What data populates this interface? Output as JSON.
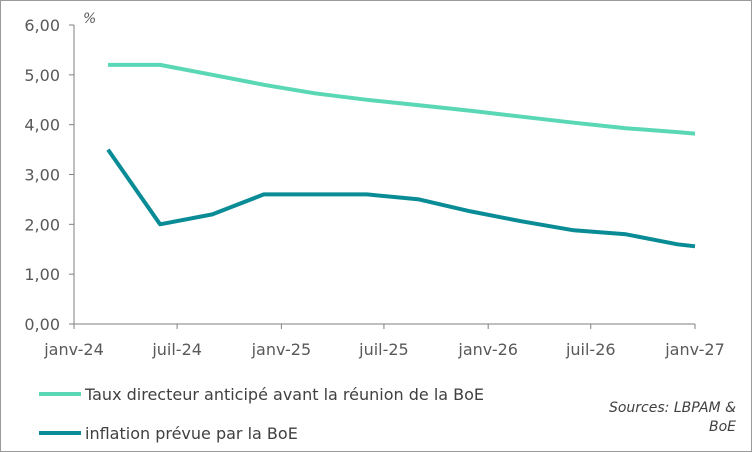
{
  "chart_data": {
    "type": "line",
    "unit_label": "%",
    "ylim": [
      0,
      6
    ],
    "y_ticks": [
      "0,00",
      "1,00",
      "2,00",
      "3,00",
      "4,00",
      "5,00",
      "6,00"
    ],
    "x_range": [
      "2024-01-01",
      "2027-01-01"
    ],
    "x_ticks": [
      {
        "label": "janv-24",
        "date": "2024-01-01"
      },
      {
        "label": "juil-24",
        "date": "2024-07-01"
      },
      {
        "label": "janv-25",
        "date": "2025-01-01"
      },
      {
        "label": "juil-25",
        "date": "2025-07-01"
      },
      {
        "label": "janv-26",
        "date": "2026-01-01"
      },
      {
        "label": "juil-26",
        "date": "2026-07-01"
      },
      {
        "label": "janv-27",
        "date": "2027-01-01"
      }
    ],
    "grid": false,
    "legend_position": "bottom-left",
    "series": [
      {
        "name": "Taux directeur anticipé avant la réunion de la BoE",
        "color": "#5ad7b4",
        "points": [
          {
            "x": "2024-03-01",
            "y": 5.2
          },
          {
            "x": "2024-06-01",
            "y": 5.2
          },
          {
            "x": "2024-09-01",
            "y": 5.0
          },
          {
            "x": "2024-12-01",
            "y": 4.8
          },
          {
            "x": "2025-03-01",
            "y": 4.63
          },
          {
            "x": "2025-06-01",
            "y": 4.5
          },
          {
            "x": "2025-09-01",
            "y": 4.39
          },
          {
            "x": "2025-12-01",
            "y": 4.28
          },
          {
            "x": "2026-03-01",
            "y": 4.16
          },
          {
            "x": "2026-06-01",
            "y": 4.04
          },
          {
            "x": "2026-09-01",
            "y": 3.93
          },
          {
            "x": "2026-12-01",
            "y": 3.85
          },
          {
            "x": "2027-01-01",
            "y": 3.82
          }
        ]
      },
      {
        "name": "inflation prévue par la BoE",
        "color": "#0a8c96",
        "points": [
          {
            "x": "2024-03-01",
            "y": 3.5
          },
          {
            "x": "2024-06-01",
            "y": 2.0
          },
          {
            "x": "2024-09-01",
            "y": 2.2
          },
          {
            "x": "2024-12-01",
            "y": 2.6
          },
          {
            "x": "2025-03-01",
            "y": 2.6
          },
          {
            "x": "2025-06-01",
            "y": 2.6
          },
          {
            "x": "2025-09-01",
            "y": 2.5
          },
          {
            "x": "2025-12-01",
            "y": 2.26
          },
          {
            "x": "2026-03-01",
            "y": 2.06
          },
          {
            "x": "2026-06-01",
            "y": 1.88
          },
          {
            "x": "2026-09-01",
            "y": 1.8
          },
          {
            "x": "2026-12-01",
            "y": 1.6
          },
          {
            "x": "2027-01-01",
            "y": 1.56
          }
        ]
      }
    ]
  },
  "source_lines": [
    "Sources: LBPAM &",
    "BoE"
  ]
}
